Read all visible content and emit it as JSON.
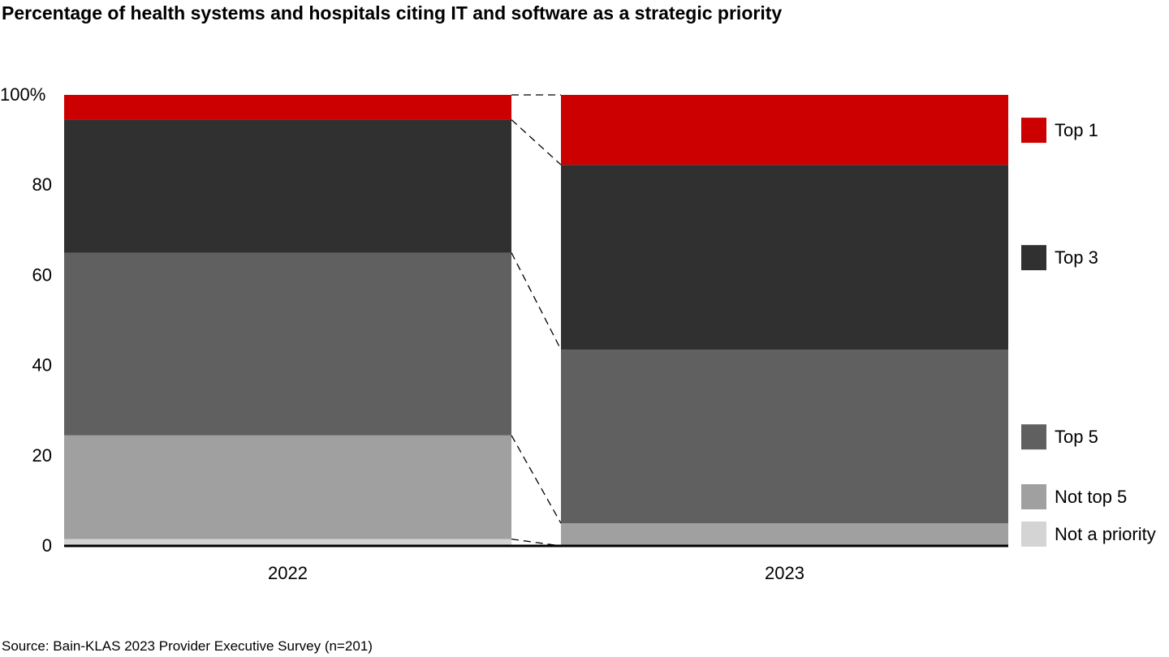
{
  "title": "Percentage of health systems and hospitals citing IT and software as a strategic priority",
  "source": "Source: Bain-KLAS 2023 Provider Executive Survey (n=201)",
  "chart_data": {
    "type": "bar",
    "stacked": true,
    "categories": [
      "2022",
      "2023"
    ],
    "series": [
      {
        "name": "Not a priority",
        "color": "#d4d4d4",
        "values": [
          1.5,
          0
        ]
      },
      {
        "name": "Not top 5",
        "color": "#a0a0a0",
        "values": [
          23,
          5
        ]
      },
      {
        "name": "Top 5",
        "color": "#606060",
        "values": [
          40.5,
          38.5
        ]
      },
      {
        "name": "Top 3",
        "color": "#303030",
        "values": [
          29.5,
          41
        ]
      },
      {
        "name": "Top 1",
        "color": "#cc0000",
        "values": [
          5.5,
          15.5
        ]
      }
    ],
    "y_ticks": [
      "0",
      "20",
      "40",
      "60",
      "80",
      "100%"
    ],
    "ylim": [
      0,
      100
    ],
    "grid": false,
    "legend_position": "right",
    "connector_lines": "dashed"
  }
}
